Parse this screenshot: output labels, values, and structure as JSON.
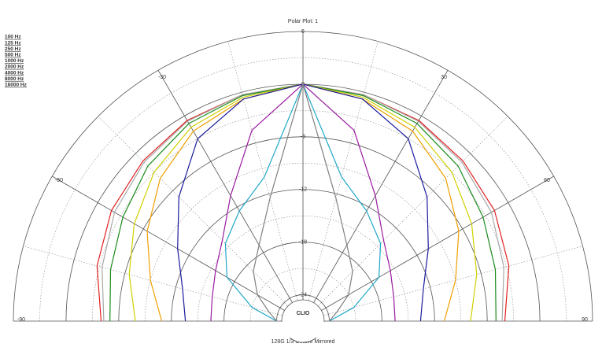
{
  "chart_data": {
    "type": "polar",
    "title": "Polar Plot: 1",
    "footer": "128G 1/3 Octave Mirrored",
    "center_label": "CLIO",
    "theta": [
      -90,
      -75,
      -60,
      -45,
      -30,
      -15,
      0,
      15,
      30,
      45,
      60,
      75,
      90
    ],
    "thetaticks": [
      -90,
      -60,
      -30,
      30,
      60,
      90
    ],
    "rlim": [
      -27,
      6
    ],
    "rticks": [
      -24,
      -18,
      -12,
      -6,
      0,
      6
    ],
    "series": [
      {
        "name": "100 Hz",
        "color": "#e02020",
        "values": [
          -4,
          -2.7,
          -1.8,
          -1.2,
          -0.6,
          -0.3,
          0,
          -0.3,
          -0.6,
          -1.2,
          -1.8,
          -2.7,
          -4
        ]
      },
      {
        "name": "125 Hz",
        "color": "#a8a8a8",
        "values": [
          -4.3,
          -3.3,
          -2.2,
          -1.4,
          -0.7,
          -0.3,
          0,
          -0.3,
          -0.7,
          -1.4,
          -2.2,
          -3.3,
          -4.3
        ]
      },
      {
        "name": "250 Hz",
        "color": "#1a8a1a",
        "values": [
          -5,
          -4.3,
          -3.3,
          -2,
          -1,
          -0.4,
          0,
          -0.4,
          -1,
          -2,
          -3.3,
          -4.3,
          -5
        ]
      },
      {
        "name": "500 Hz",
        "color": "#d0d000",
        "values": [
          -7.9,
          -6.5,
          -4.8,
          -3,
          -1.5,
          -0.6,
          0,
          -0.6,
          -1.5,
          -3,
          -4.8,
          -6.5,
          -7.9
        ]
      },
      {
        "name": "1000 Hz",
        "color": "#f0a000",
        "values": [
          -10.9,
          -9,
          -6.5,
          -4,
          -2,
          -0.8,
          0,
          -0.8,
          -2,
          -4,
          -6.5,
          -9,
          -10.9
        ]
      },
      {
        "name": "2000 Hz",
        "color": "#1a1aa0",
        "values": [
          -13.6,
          -12.8,
          -10.5,
          -7,
          -3,
          -0.8,
          0,
          -0.8,
          -3,
          -7,
          -10.5,
          -12.8,
          -13.6
        ]
      },
      {
        "name": "4000 Hz",
        "color": "#9a1aa0",
        "values": [
          -16.5,
          -16.3,
          -15.5,
          -14,
          -10.5,
          -4.5,
          0,
          -4.5,
          -10.5,
          -14,
          -15.5,
          -16.3,
          -16.5
        ]
      },
      {
        "name": "8000 Hz",
        "color": "#20a8c8",
        "values": [
          -24,
          -21,
          -17,
          -14.5,
          -12.5,
          -10,
          0,
          -10,
          -12.5,
          -14.5,
          -17,
          -21,
          -24
        ]
      },
      {
        "name": "16000 Hz",
        "color": "#808080",
        "values": [
          -24,
          -23,
          -21,
          -19,
          -17,
          -12.5,
          0,
          -12.5,
          -17,
          -19,
          -21,
          -23,
          -24
        ]
      }
    ]
  }
}
